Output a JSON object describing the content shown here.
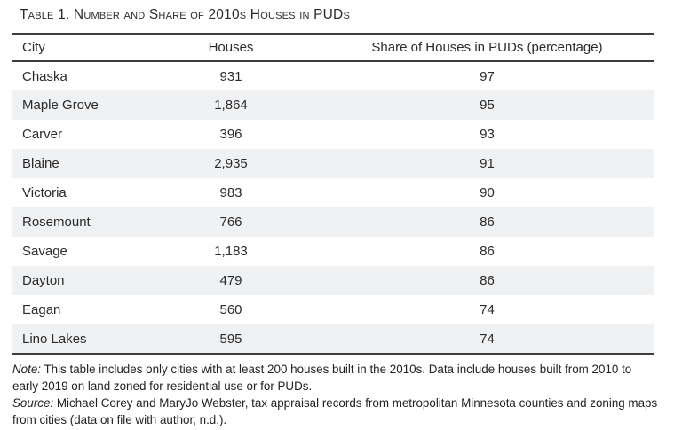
{
  "title": "Table 1. Number and Share of 2010s Houses in PUDs",
  "table": {
    "columns": [
      "City",
      "Houses",
      "Share of Houses in PUDs (percentage)"
    ],
    "rows": [
      {
        "city": "Chaska",
        "houses": "931",
        "share": "97"
      },
      {
        "city": "Maple Grove",
        "houses": "1,864",
        "share": "95"
      },
      {
        "city": "Carver",
        "houses": "396",
        "share": "93"
      },
      {
        "city": "Blaine",
        "houses": "2,935",
        "share": "91"
      },
      {
        "city": "Victoria",
        "houses": "983",
        "share": "90"
      },
      {
        "city": "Rosemount",
        "houses": "766",
        "share": "86"
      },
      {
        "city": "Savage",
        "houses": "1,183",
        "share": "86"
      },
      {
        "city": "Dayton",
        "houses": "479",
        "share": "86"
      },
      {
        "city": "Eagan",
        "houses": "560",
        "share": "74"
      },
      {
        "city": "Lino Lakes",
        "houses": "595",
        "share": "74"
      }
    ]
  },
  "notes": {
    "note_label": "Note:",
    "note_text": " This table includes only cities with at least 200 houses built in the 2010s. Data include houses built from 2010 to early 2019 on land zoned for residential use or for PUDs.",
    "source_label": "Source:",
    "source_text": " Michael Corey and MaryJo Webster, tax appraisal records from metropolitan Minnesota counties and zoning maps from cities (data on file with author, n.d.)."
  },
  "colors": {
    "stripe": "#f0f1f3",
    "rule": "#3d3d3d",
    "text": "#2b2b2b"
  }
}
